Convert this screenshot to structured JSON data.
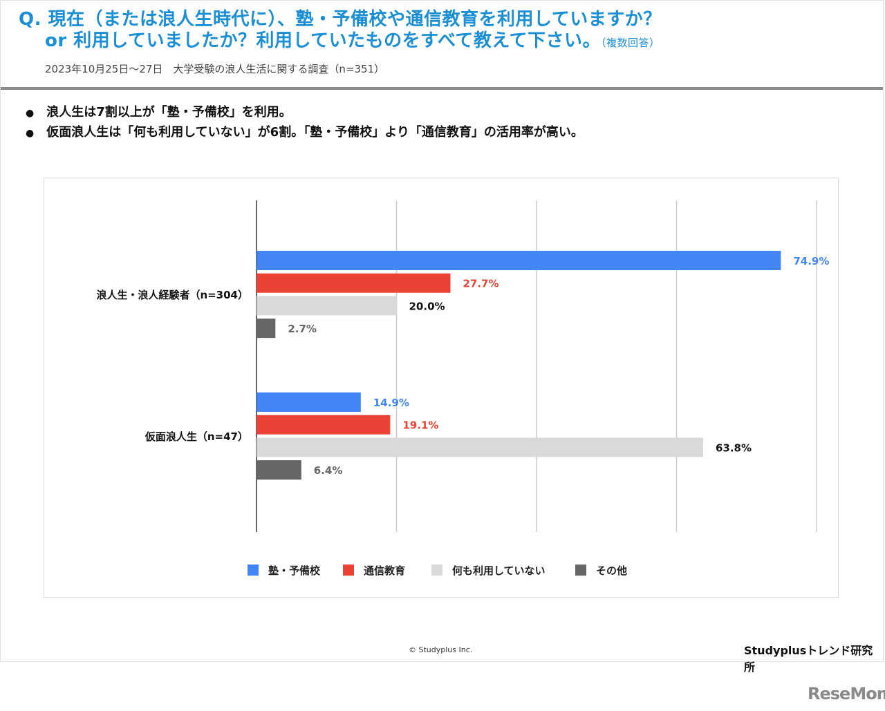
{
  "header": {
    "question_line1": "Q. 現在（または浪人生時代に）、塾・予備校や通信教育を利用していますか？",
    "question_line2": "or 利用していましたか？利用していたものをすべて教えて下さい。",
    "question_note": "（複数回答）",
    "survey": "2023年10月25日〜27日　大学受験の浪人生活に関する調査（n=351）"
  },
  "bullets": [
    "浪人生は7割以上が「塾・予備校」を利用。",
    "仮面浪人生は「何も利用していない」が6割。「塾・予備校」より「通信教育」の活用率が高い。"
  ],
  "chart_data": {
    "type": "bar",
    "orientation": "horizontal",
    "categories": [
      "浪人生・浪人経験者（n=304）",
      "仮面浪人生（n=47）"
    ],
    "series": [
      {
        "name": "塾・予備校",
        "color": "#4285f4",
        "values": [
          74.9,
          14.9
        ],
        "labels": [
          "74.9%",
          "14.9%"
        ]
      },
      {
        "name": "通信教育",
        "color": "#ea4335",
        "values": [
          27.7,
          19.1
        ],
        "labels": [
          "27.7%",
          "19.1%"
        ]
      },
      {
        "name": "何も利用していない",
        "color": "#d9d9d9",
        "values": [
          20.0,
          63.8
        ],
        "labels": [
          "20.0%",
          "63.8%"
        ]
      },
      {
        "name": "その他",
        "color": "#666666",
        "values": [
          2.7,
          6.4
        ],
        "labels": [
          "2.7%",
          "6.4%"
        ]
      }
    ],
    "label_colors": [
      "#4285f4",
      "#ea4335",
      "#111111",
      "#666666"
    ],
    "xlim": [
      0,
      80
    ],
    "grid": true,
    "legend": "bottom"
  },
  "footer": {
    "copyright": "© Studyplus Inc.",
    "brand": "Studyplusトレンド研究所",
    "watermark": "ReseMom"
  }
}
